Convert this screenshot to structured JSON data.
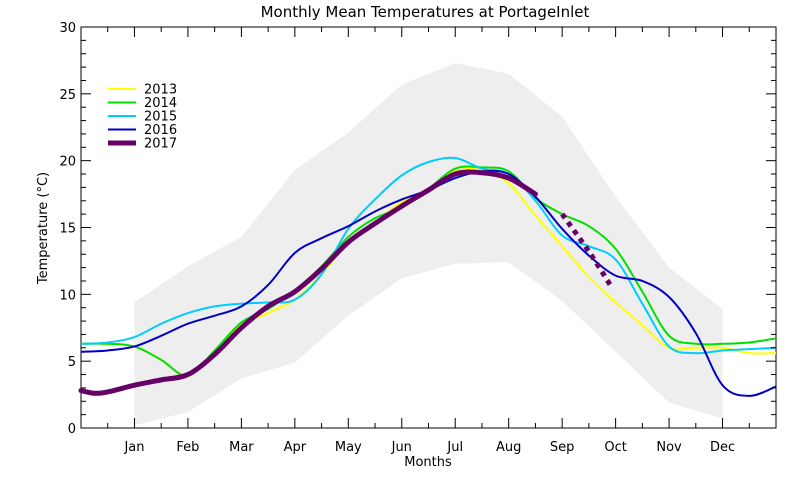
{
  "chart_data": {
    "type": "line",
    "title": "Monthly Mean Temperatures at PortageInlet",
    "xlabel": "Months",
    "ylabel": "Temperature (°C)",
    "ylim": [
      0,
      30
    ],
    "yticks": [
      0,
      5,
      10,
      15,
      20,
      25,
      30
    ],
    "xlim": [
      0,
      13
    ],
    "months": [
      "Jan",
      "Feb",
      "Mar",
      "Apr",
      "May",
      "Jun",
      "Jul",
      "Aug",
      "Sep",
      "Oct",
      "Nov",
      "Dec"
    ],
    "range_band": {
      "x": [
        1,
        2,
        3,
        4,
        5,
        6,
        7,
        8,
        9,
        10,
        11,
        12
      ],
      "max": [
        9.4,
        12.1,
        14.3,
        19.3,
        22.1,
        25.7,
        27.3,
        26.5,
        23.3,
        17.3,
        12.0,
        8.9
      ],
      "min": [
        0.2,
        1.2,
        3.7,
        4.9,
        8.4,
        11.2,
        12.3,
        12.4,
        9.5,
        5.7,
        1.9,
        0.7
      ]
    },
    "series": [
      {
        "name": "2013",
        "color": "#ffff00",
        "width": 2,
        "dashed": false,
        "x": [
          0,
          0.5,
          1,
          1.5,
          2,
          2.5,
          3,
          3.5,
          4,
          4.5,
          5,
          5.5,
          6,
          6.5,
          7,
          7.5,
          8,
          8.5,
          9,
          9.5,
          10,
          10.5,
          11,
          11.5,
          12,
          12.5,
          13
        ],
        "y": [
          6.3,
          6.3,
          6.1,
          5.1,
          3.9,
          5.8,
          7.7,
          8.6,
          9.6,
          11.5,
          13.9,
          15.4,
          16.9,
          17.9,
          19.2,
          19.3,
          18.3,
          15.9,
          13.6,
          11.3,
          9.4,
          7.7,
          6.0,
          6.0,
          6.0,
          5.6,
          5.6
        ]
      },
      {
        "name": "2014",
        "color": "#00e000",
        "width": 2,
        "dashed": false,
        "x": [
          0,
          0.5,
          1,
          1.5,
          2,
          2.5,
          3,
          3.5,
          4,
          4.5,
          5,
          5.5,
          6,
          6.5,
          7,
          7.5,
          8,
          8.5,
          9,
          9.5,
          10,
          10.5,
          11,
          11.5,
          12,
          12.5,
          13
        ],
        "y": [
          6.3,
          6.3,
          6.1,
          5.1,
          3.9,
          5.8,
          7.9,
          8.9,
          10.3,
          12.1,
          14.3,
          15.7,
          16.5,
          17.9,
          19.4,
          19.5,
          19.2,
          17.2,
          16.0,
          15.1,
          13.4,
          10.2,
          6.9,
          6.3,
          6.3,
          6.4,
          6.7
        ]
      },
      {
        "name": "2015",
        "color": "#00ccff",
        "width": 2,
        "dashed": false,
        "x": [
          0,
          0.5,
          1,
          1.5,
          2,
          2.5,
          3,
          3.5,
          4,
          4.5,
          5,
          5.5,
          6,
          6.5,
          7,
          7.5,
          8,
          8.5,
          9,
          9.5,
          10,
          10.5,
          11,
          11.5,
          12,
          12.5,
          13
        ],
        "y": [
          6.3,
          6.4,
          6.8,
          7.8,
          8.6,
          9.1,
          9.3,
          9.4,
          9.6,
          11.5,
          14.9,
          17.1,
          18.9,
          19.9,
          20.2,
          19.4,
          19.0,
          17.0,
          14.4,
          13.6,
          12.6,
          9.3,
          6.1,
          5.6,
          5.8,
          5.9,
          6.0
        ]
      },
      {
        "name": "2016",
        "color": "#0000c8",
        "width": 2,
        "dashed": false,
        "x": [
          0,
          0.5,
          1,
          1.5,
          2,
          2.5,
          3,
          3.5,
          4,
          4.5,
          5,
          5.5,
          6,
          6.5,
          7,
          7.5,
          8,
          8.5,
          9,
          9.5,
          10,
          10.5,
          11,
          11.5,
          12,
          12.5,
          13
        ],
        "y": [
          5.7,
          5.8,
          6.1,
          6.9,
          7.8,
          8.4,
          9.1,
          10.7,
          13.1,
          14.2,
          15.1,
          16.2,
          17.1,
          17.8,
          18.7,
          19.2,
          19.0,
          17.3,
          14.9,
          12.9,
          11.4,
          11.0,
          9.8,
          7.1,
          3.2,
          2.4,
          3.1
        ]
      },
      {
        "name": "2017",
        "color": "#660066",
        "width": 5,
        "dashed": true,
        "x": [
          0,
          0.25,
          0.5,
          1,
          1.5,
          2,
          2.5,
          3,
          3.5,
          4,
          4.5,
          5,
          5.5,
          6,
          6.5,
          7,
          7.5,
          8,
          8.5,
          9,
          9.5,
          9.9
        ],
        "y": [
          2.8,
          2.6,
          2.7,
          3.2,
          3.6,
          4.0,
          5.5,
          7.5,
          9.1,
          10.2,
          11.9,
          13.9,
          15.3,
          16.6,
          17.8,
          19.0,
          19.1,
          18.7,
          17.5,
          16.0,
          13.2,
          10.7
        ],
        "dash_from_x": 8.9
      }
    ]
  }
}
